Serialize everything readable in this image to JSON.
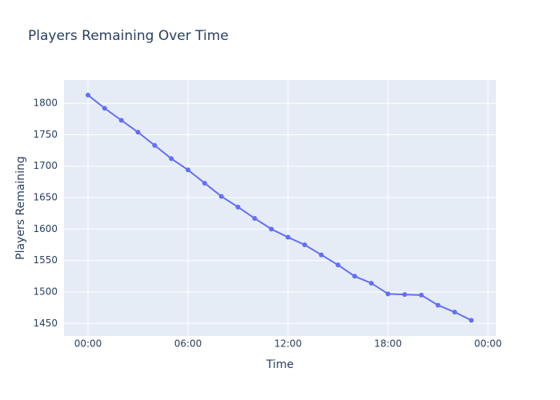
{
  "chart_data": {
    "type": "line",
    "title": "Players Remaining Over Time",
    "x_label": "Time",
    "y_label": "Players Remaining",
    "x": [
      0,
      1,
      2,
      3,
      4,
      5,
      6,
      7,
      8,
      9,
      10,
      11,
      12,
      13,
      14,
      15,
      16,
      17,
      18,
      19,
      20,
      21,
      22,
      23
    ],
    "series": [
      {
        "name": "Players Remaining",
        "color": "#636efa",
        "values": [
          1813,
          1792,
          1773,
          1754,
          1733,
          1712,
          1694,
          1673,
          1652,
          1635,
          1617,
          1600,
          1587,
          1575,
          1559,
          1543,
          1525,
          1514,
          1497,
          1496,
          1495,
          1479,
          1468,
          1455
        ]
      }
    ],
    "xlim": [
      -1.44,
      24.48
    ],
    "xticks": [
      {
        "value": 0,
        "label": "00:00"
      },
      {
        "value": 6,
        "label": "06:00"
      },
      {
        "value": 12,
        "label": "12:00"
      },
      {
        "value": 18,
        "label": "18:00"
      },
      {
        "value": 24,
        "label": "00:00"
      }
    ],
    "ylim": [
      1430,
      1837
    ],
    "yticks": [
      1450,
      1500,
      1550,
      1600,
      1650,
      1700,
      1750,
      1800
    ],
    "grid": true
  }
}
